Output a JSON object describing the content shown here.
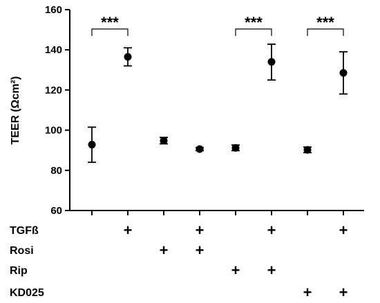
{
  "chart_data": {
    "type": "scatter",
    "ylabel": "TEER (Ωcm²)",
    "ylim": [
      60,
      160
    ],
    "yticks": [
      60,
      80,
      100,
      120,
      140,
      160
    ],
    "grid": false,
    "groups": [
      1,
      2,
      3,
      4,
      5,
      6,
      7,
      8
    ],
    "points": [
      {
        "group": 1,
        "mean": 92.8,
        "lower": 84.0,
        "upper": 101.5
      },
      {
        "group": 2,
        "mean": 136.5,
        "lower": 132.0,
        "upper": 141.0
      },
      {
        "group": 3,
        "mean": 94.8,
        "lower": 93.2,
        "upper": 96.4
      },
      {
        "group": 4,
        "mean": 90.6,
        "lower": 89.8,
        "upper": 91.4
      },
      {
        "group": 5,
        "mean": 91.2,
        "lower": 89.8,
        "upper": 92.6
      },
      {
        "group": 6,
        "mean": 134.0,
        "lower": 125.0,
        "upper": 142.8
      },
      {
        "group": 7,
        "mean": 90.2,
        "lower": 88.8,
        "upper": 91.6
      },
      {
        "group": 8,
        "mean": 128.5,
        "lower": 118.0,
        "upper": 139.0
      }
    ],
    "treatments": [
      {
        "label": "TGFß",
        "present": [
          2,
          4,
          6,
          8
        ]
      },
      {
        "label": "Rosi",
        "present": [
          3,
          4
        ]
      },
      {
        "label": "Rip",
        "present": [
          5,
          6
        ]
      },
      {
        "label": "KD025",
        "present": [
          7,
          8
        ]
      }
    ],
    "present_marker": "+",
    "significance": [
      {
        "from": 1,
        "to": 2,
        "label": "***"
      },
      {
        "from": 5,
        "to": 6,
        "label": "***"
      },
      {
        "from": 7,
        "to": 8,
        "label": "***"
      }
    ]
  }
}
